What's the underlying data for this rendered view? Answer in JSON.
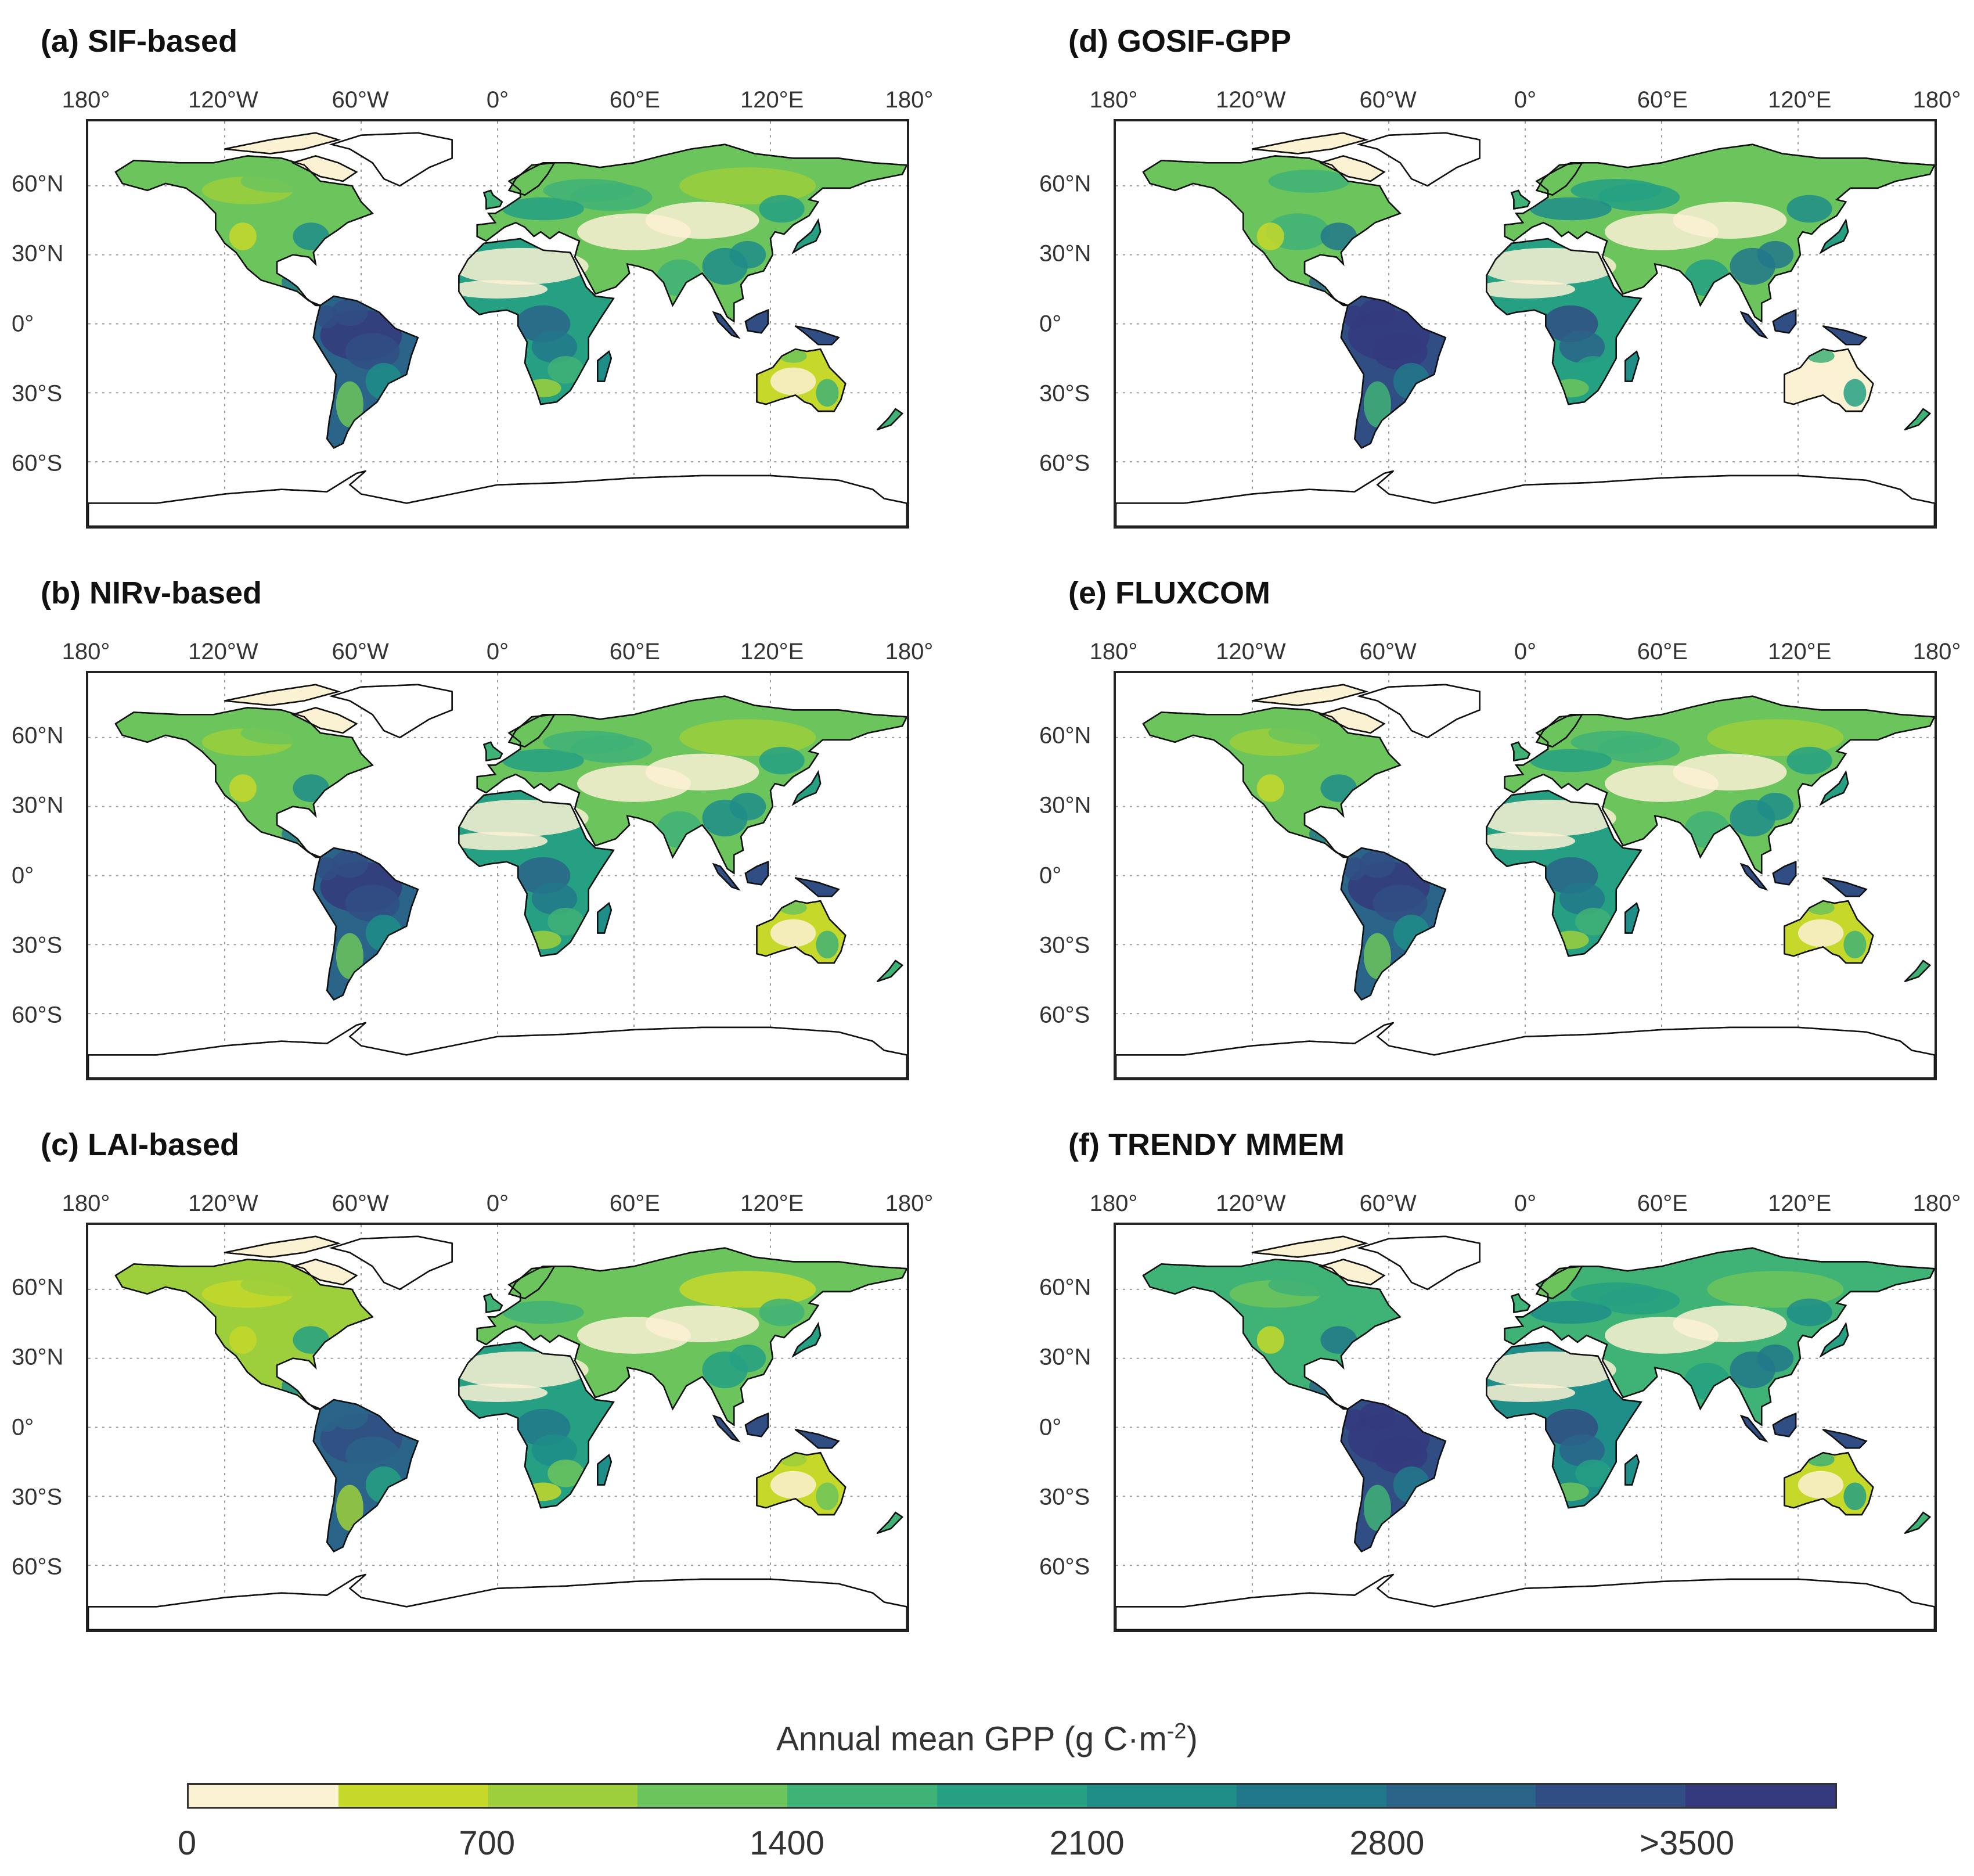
{
  "figure": {
    "panels": [
      {
        "id": "a",
        "title": "(a) SIF-based"
      },
      {
        "id": "b",
        "title": "(b) NIRv-based"
      },
      {
        "id": "c",
        "title": "(c) LAI-based"
      },
      {
        "id": "d",
        "title": "(d) GOSIF-GPP"
      },
      {
        "id": "e",
        "title": "(e) FLUXCOM"
      },
      {
        "id": "f",
        "title": "(f) TRENDY MMEM"
      }
    ],
    "longitude_labels": [
      "180°",
      "120°W",
      "60°W",
      "0°",
      "60°E",
      "120°E",
      "180°"
    ],
    "latitude_labels": [
      "60°N",
      "30°N",
      "0°",
      "30°S",
      "60°S"
    ],
    "colorbar": {
      "title_main": "Annual mean GPP (g C·m",
      "title_exp": "-2",
      "title_end": ")",
      "tick_labels": [
        "0",
        "700",
        "1400",
        "2100",
        "2800",
        ">3500"
      ],
      "range": [
        0,
        3850
      ],
      "colors": [
        "#fbf1d3",
        "#c6d82a",
        "#9ccf3b",
        "#6cc45c",
        "#3fb276",
        "#25a082",
        "#1f8d88",
        "#22788b",
        "#2a6489",
        "#314e84",
        "#343a7d"
      ]
    }
  }
}
